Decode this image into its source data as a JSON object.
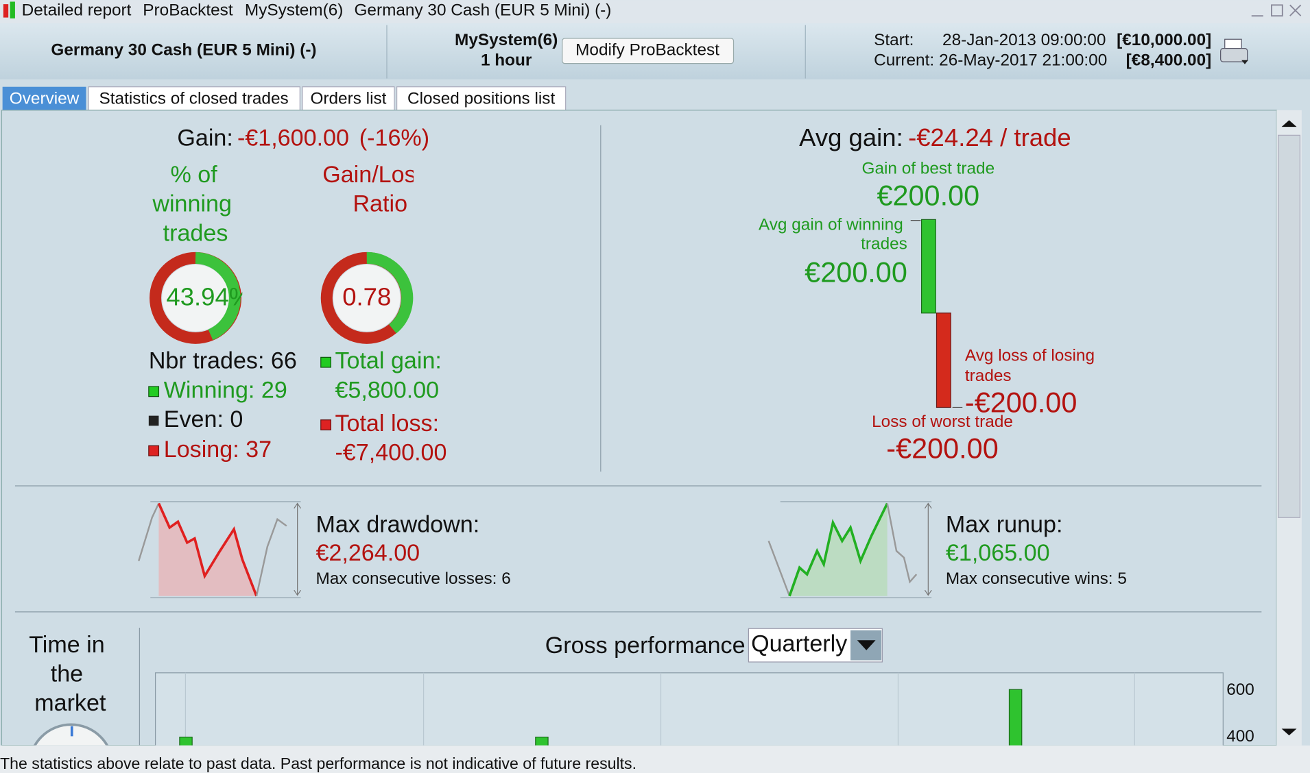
{
  "title_bar": {
    "items": [
      "Detailed report",
      "ProBacktest",
      "MySystem(6)",
      "Germany 30 Cash (EUR 5 Mini) (-)"
    ]
  },
  "header": {
    "instrument": "Germany 30 Cash (EUR 5 Mini) (-)",
    "system": "MySystem(6)",
    "timeframe": "1 hour",
    "button": "Modify ProBacktest",
    "start_label": "Start:",
    "start_date": "28-Jan-2013 09:00:00",
    "start_capital": "[€10,000.00]",
    "current_label": "Current:",
    "current_date": "26-May-2017 21:00:00",
    "current_capital": "[€8,400.00]"
  },
  "tabs": [
    "Overview",
    "Statistics of closed trades",
    "Orders list",
    "Closed positions list"
  ],
  "overview": {
    "gain_label": "Gain:",
    "gain_value": "-€1,600.00",
    "gain_pct": "(-16%)",
    "winning_title": [
      "% of",
      "winning",
      "trades"
    ],
    "winning_pct": "43.94%",
    "ratio_title": [
      "Gain/Loss",
      "Ratio"
    ],
    "ratio": "0.78",
    "nbr_trades": "Nbr trades: 66",
    "winning": "Winning: 29",
    "even": "Even: 0",
    "losing": "Losing: 37",
    "total_gain_label": "Total gain:",
    "total_gain": "€5,800.00",
    "total_loss_label": "Total loss:",
    "total_loss": "-€7,400.00",
    "avg_gain_label": "Avg gain:",
    "avg_gain": "-€24.24 / trade",
    "best_trade_label": "Gain of best trade",
    "best_trade": "€200.00",
    "avg_win_label": [
      "Avg gain of winning",
      "trades"
    ],
    "avg_win": "€200.00",
    "avg_loss_label": [
      "Avg loss of losing",
      "trades"
    ],
    "avg_loss": "-€200.00",
    "worst_trade_label": "Loss of worst trade",
    "worst_trade": "-€200.00",
    "drawdown_label": "Max drawdown:",
    "drawdown": "€2,264.00",
    "consecutive_losses": "Max consecutive losses: 6",
    "runup_label": "Max runup:",
    "runup": "€1,065.00",
    "consecutive_wins": "Max consecutive wins: 5",
    "time_in_market": [
      "Time in",
      "the",
      "market"
    ],
    "gross_performance": "Gross performance",
    "period": "Quarterly",
    "axis_ticks": [
      "600",
      "400"
    ]
  },
  "footer": "The statistics above relate to past data. Past performance is not indicative of future results."
}
